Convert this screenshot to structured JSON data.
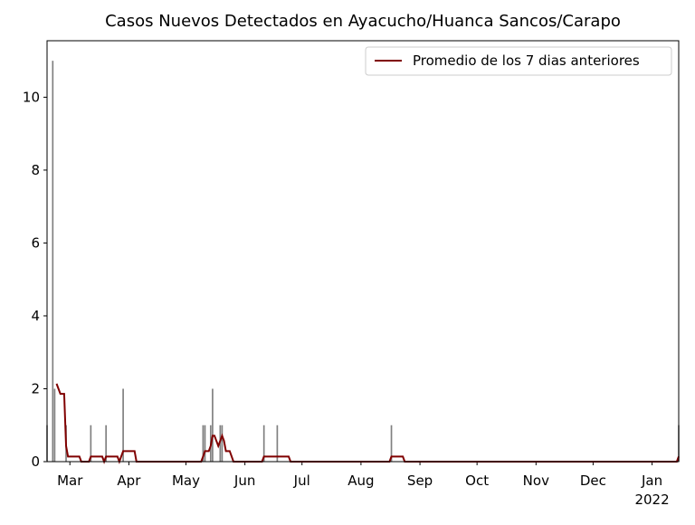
{
  "chart_data": {
    "type": "bar+line",
    "title": "Casos Nuevos Detectados en Ayacucho/Huanca Sancos/Carapo",
    "bars": {
      "color": "#808080",
      "x": [
        47,
        50,
        51,
        57,
        70,
        78,
        87,
        129,
        130,
        133,
        134,
        138,
        139,
        161,
        168,
        228,
        379
      ],
      "values": [
        1,
        11,
        2,
        1,
        1,
        1,
        2,
        1,
        1,
        1,
        2,
        1,
        1,
        1,
        1,
        1,
        1
      ]
    },
    "series": [
      {
        "name": "Promedio de los 7 dias anteriores",
        "color": "#800000",
        "x": [
          52,
          53,
          54,
          55,
          56,
          57,
          58,
          64,
          65,
          69,
          70,
          76,
          77,
          78,
          84,
          85,
          87,
          93,
          94,
          128,
          129,
          130,
          132,
          133,
          134,
          135,
          136,
          137,
          138,
          139,
          140,
          141,
          143,
          145,
          160,
          161,
          174,
          175,
          227,
          228,
          234,
          235,
          378,
          379
        ],
        "values": [
          2.14,
          2.0,
          1.86,
          1.86,
          1.86,
          0.43,
          0.14,
          0.14,
          0,
          0,
          0.14,
          0.14,
          0,
          0.14,
          0.14,
          0,
          0.29,
          0.29,
          0,
          0,
          0.14,
          0.29,
          0.29,
          0.43,
          0.71,
          0.71,
          0.57,
          0.43,
          0.57,
          0.71,
          0.57,
          0.29,
          0.29,
          0,
          0,
          0.14,
          0.14,
          0,
          0,
          0.14,
          0.14,
          0,
          0,
          0.14
        ]
      }
    ],
    "xlim": [
      47,
      379
    ],
    "xticks": [
      {
        "value": 59,
        "label": "Mar"
      },
      {
        "value": 90,
        "label": "Apr"
      },
      {
        "value": 120,
        "label": "May"
      },
      {
        "value": 151,
        "label": "Jun"
      },
      {
        "value": 181,
        "label": "Jul"
      },
      {
        "value": 212,
        "label": "Aug"
      },
      {
        "value": 243,
        "label": "Sep"
      },
      {
        "value": 273,
        "label": "Oct"
      },
      {
        "value": 304,
        "label": "Nov"
      },
      {
        "value": 334,
        "label": "Dec"
      },
      {
        "value": 365,
        "label": "Jan\n2022"
      }
    ],
    "ylim": [
      0,
      11.55
    ],
    "yticks": [
      0,
      2,
      4,
      6,
      8,
      10
    ],
    "legend": "upper right"
  }
}
